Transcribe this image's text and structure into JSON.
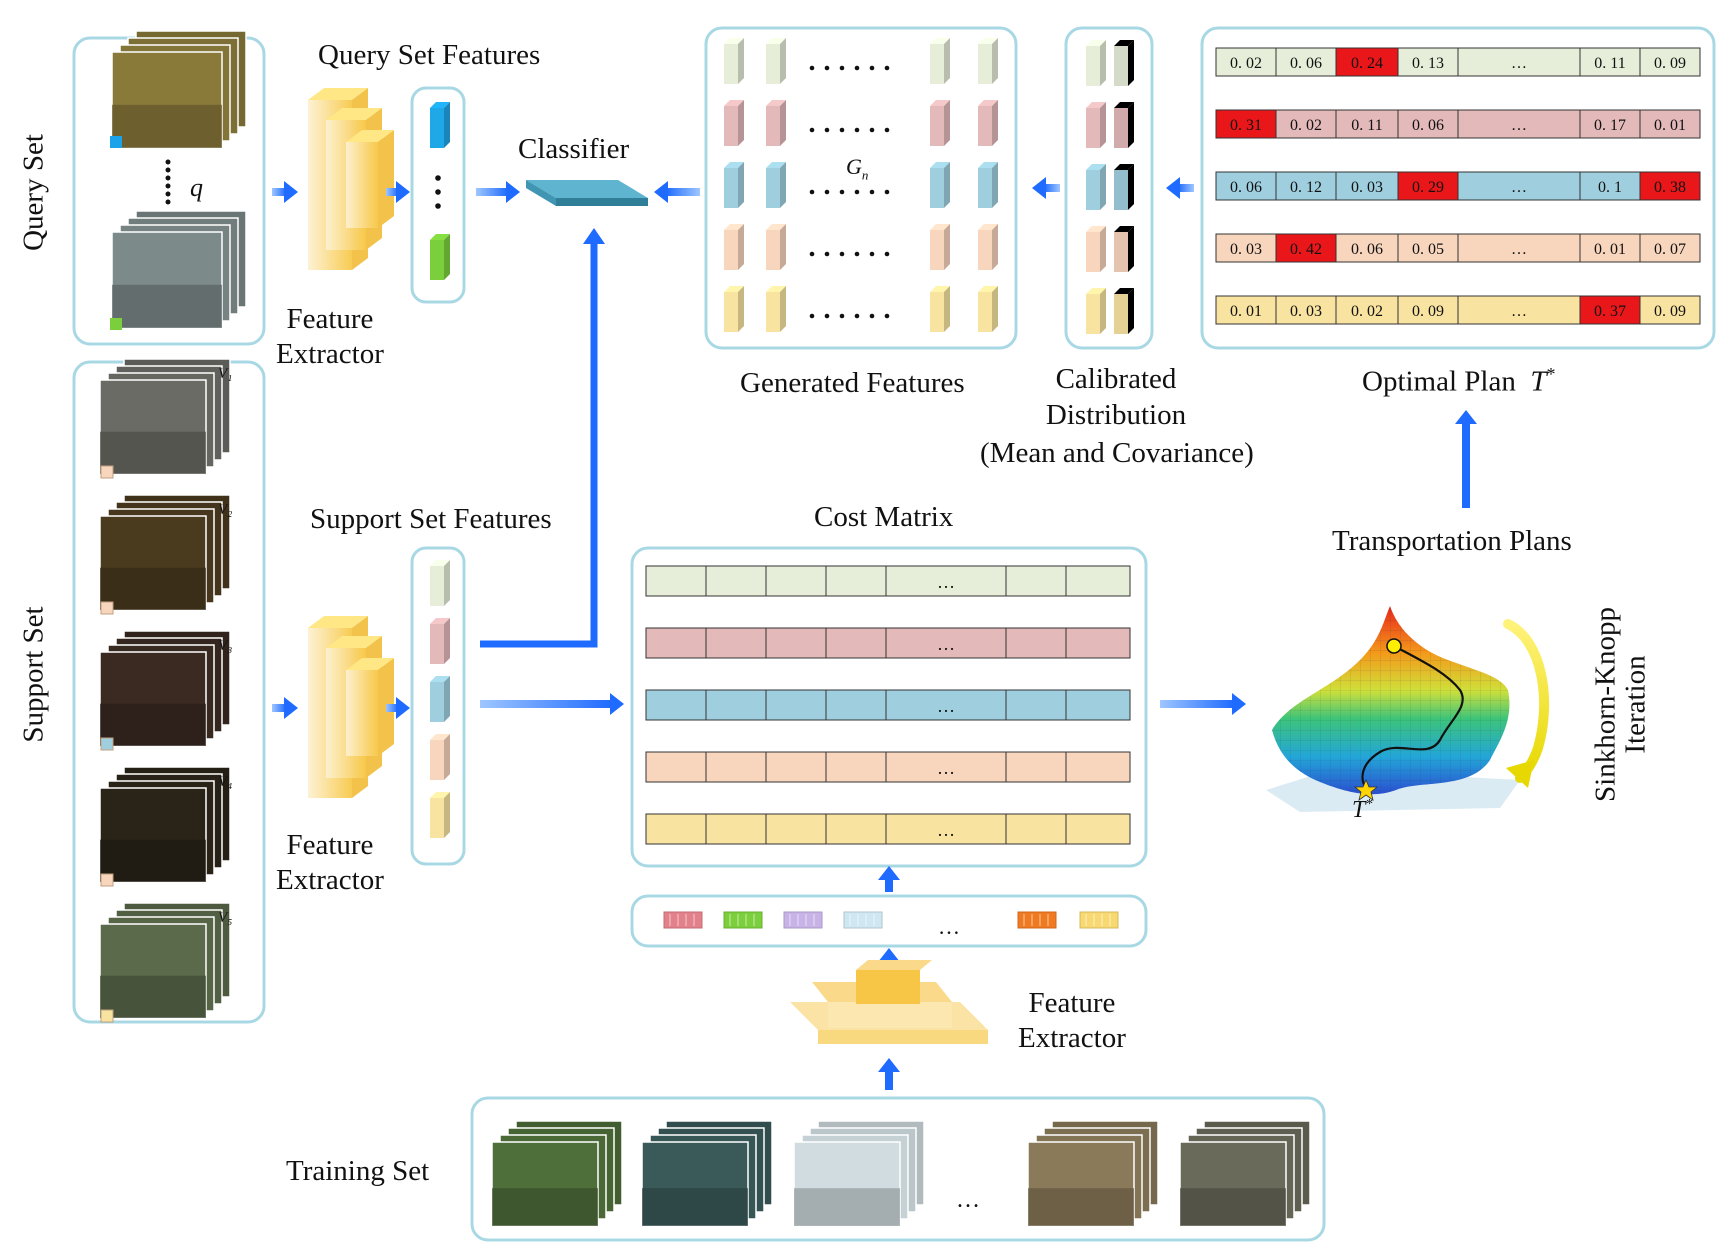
{
  "labels": {
    "query_set": "Query Set",
    "support_set": "Support Set",
    "query_features": "Query Set Features",
    "support_features": "Support Set Features",
    "feature_extractor_1": "Feature\nExtractor",
    "feature_extractor_2": "Feature\nExtractor",
    "feature_extractor_3": "Feature\nExtractor",
    "classifier": "Classifier",
    "generated_features": "Generated Features",
    "calibrated_l1": "Calibrated",
    "calibrated_l2": "Distribution",
    "calibrated_l3": "(Mean and Covariance)",
    "optimal_plan": "Optimal Plan",
    "optimal_plan_symbol": "T",
    "transportation_plans": "Transportation Plans",
    "sinkhorn_l1": "Sinkhorn-Knopp",
    "sinkhorn_l2": "Iteration",
    "cost_matrix": "Cost Matrix",
    "training_set": "Training Set",
    "q_symbol": "q",
    "gn_symbol": "G",
    "gn_sub": "n",
    "t_star": "T",
    "ellipsis": "…",
    "dots": "......"
  },
  "support_videos": [
    "V₁",
    "V₂",
    "V₃",
    "V₄",
    "V₅"
  ],
  "class_colors": {
    "green": "#e6eed9",
    "red": "#e3b9ba",
    "blue": "#9fcfdf",
    "orange": "#f8d5bd",
    "yellow": "#f8e3a0",
    "highlight": "#e9161a"
  },
  "plan_matrix": [
    {
      "values": [
        "0. 02",
        "0. 06",
        "0. 24",
        "0. 13",
        "…",
        "0. 11",
        "0. 09"
      ],
      "highlight": [
        2
      ]
    },
    {
      "values": [
        "0. 31",
        "0. 02",
        "0. 11",
        "0. 06",
        "…",
        "0. 17",
        "0. 01"
      ],
      "highlight": [
        0
      ]
    },
    {
      "values": [
        "0. 06",
        "0. 12",
        "0. 03",
        "0. 29",
        "…",
        "0. 1",
        "0. 38"
      ],
      "highlight": [
        3,
        6
      ]
    },
    {
      "values": [
        "0. 03",
        "0. 42",
        "0. 06",
        "0. 05",
        "…",
        "0. 01",
        "0. 07"
      ],
      "highlight": [
        1
      ]
    },
    {
      "values": [
        "0. 01",
        "0. 03",
        "0. 02",
        "0. 09",
        "…",
        "0. 37",
        "0. 09"
      ],
      "highlight": [
        5
      ]
    }
  ]
}
